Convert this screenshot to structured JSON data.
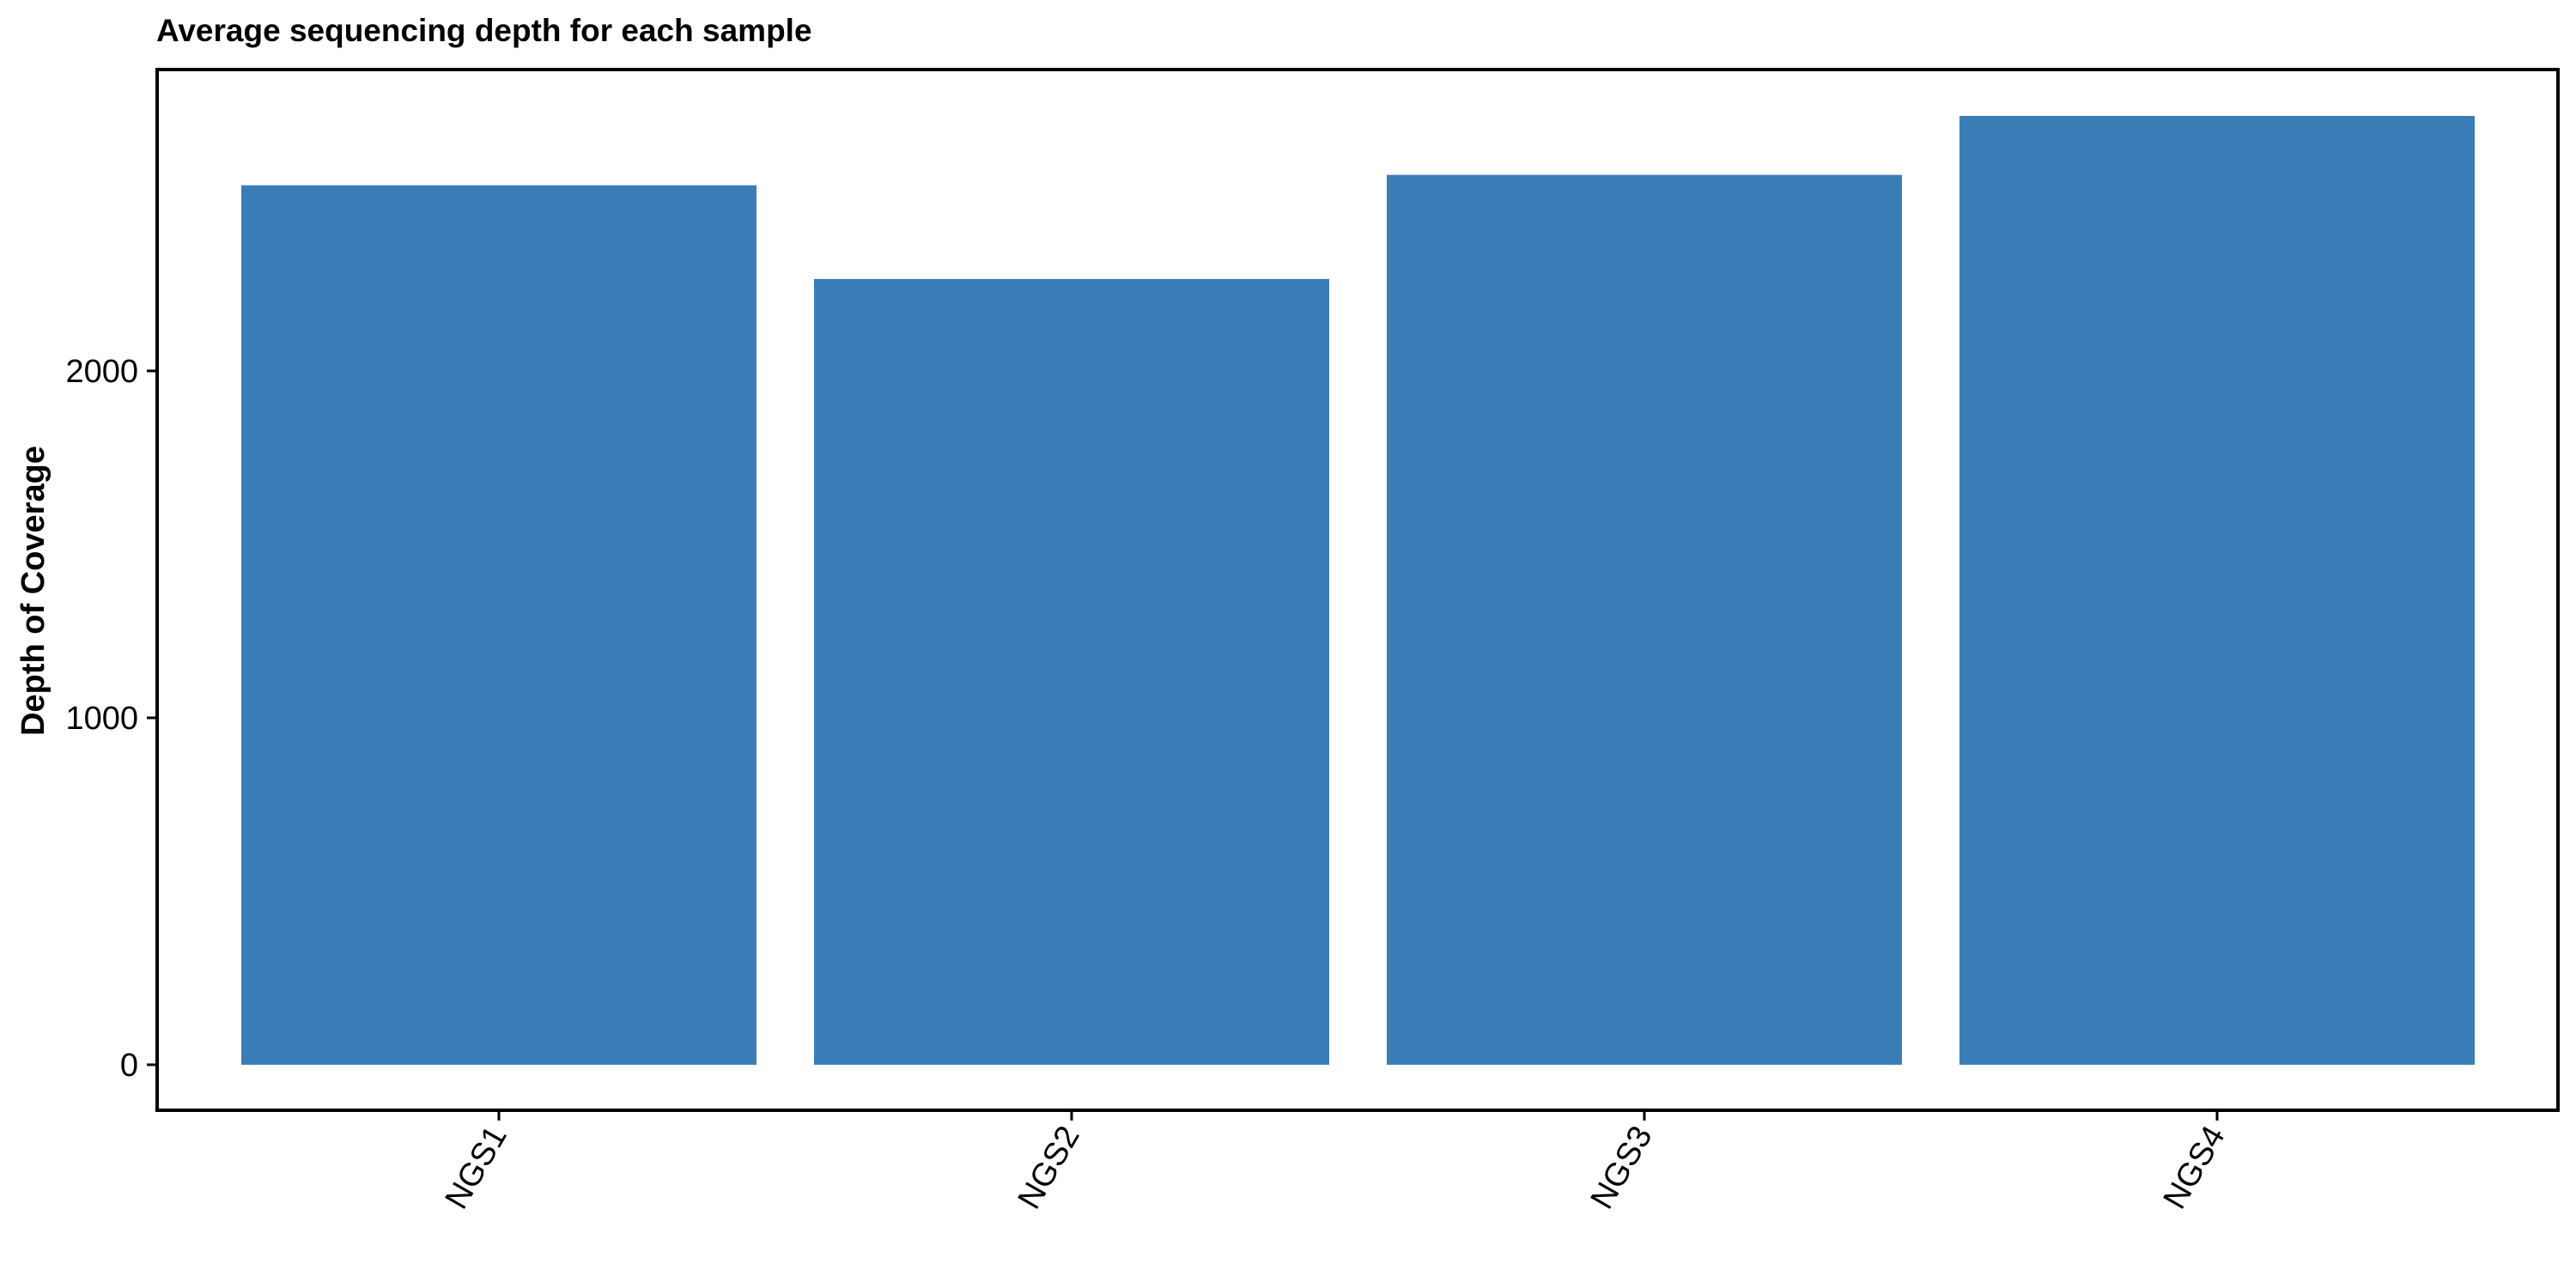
{
  "chart_data": {
    "type": "bar",
    "title": "Average sequencing depth for each sample",
    "xlabel": "",
    "ylabel": "Depth of Coverage",
    "categories": [
      "NGS1",
      "NGS2",
      "NGS3",
      "NGS4"
    ],
    "values": [
      2535,
      2265,
      2565,
      2735
    ],
    "ylim": [
      0,
      2735
    ],
    "yticks": [
      0,
      1000,
      2000
    ],
    "ytick_labels": [
      "0",
      "1000",
      "2000"
    ],
    "grid": false,
    "legend": "none",
    "colors": {
      "bar": "#3a7eb8",
      "axis": "#000000",
      "background": "#ffffff"
    }
  }
}
